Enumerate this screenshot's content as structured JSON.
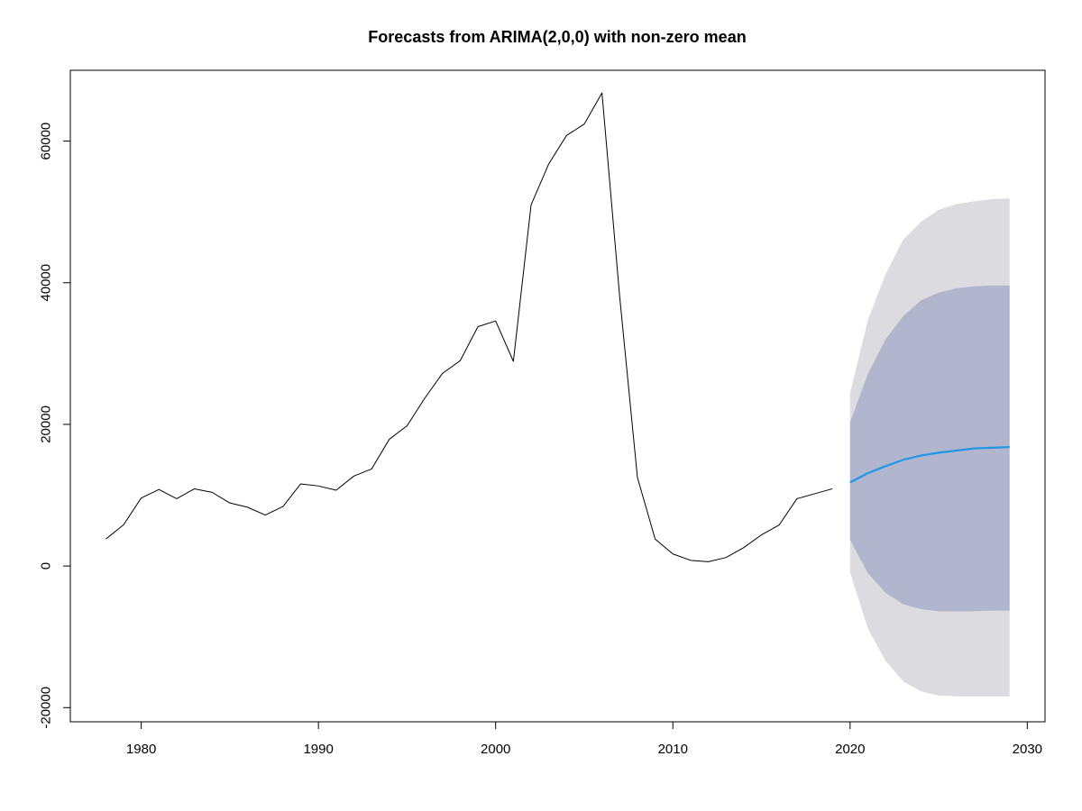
{
  "chart_data": {
    "type": "line",
    "title": "Forecasts from ARIMA(2,0,0) with non-zero mean",
    "xlabel": "",
    "ylabel": "",
    "xlim": [
      1976,
      2031
    ],
    "ylim": [
      -22000,
      70000
    ],
    "x_ticks": [
      1980,
      1990,
      2000,
      2010,
      2020,
      2030
    ],
    "y_ticks": [
      -20000,
      0,
      20000,
      40000,
      60000
    ],
    "x_tick_labels": [
      "1980",
      "1990",
      "2000",
      "2010",
      "2020",
      "2030"
    ],
    "y_tick_labels": [
      "-20000",
      "0",
      "20000",
      "40000",
      "60000"
    ],
    "grid": false,
    "colors": {
      "history": "#000000",
      "forecast": "#2297e6",
      "band95": "#dbdbe0",
      "band80": "#b1b5ce"
    },
    "history": {
      "x": [
        1978,
        1979,
        1980,
        1981,
        1982,
        1983,
        1984,
        1985,
        1986,
        1987,
        1988,
        1989,
        1990,
        1991,
        1992,
        1993,
        1994,
        1995,
        1996,
        1997,
        1998,
        1999,
        2000,
        2001,
        2002,
        2003,
        2004,
        2005,
        2006,
        2007,
        2008,
        2009,
        2010,
        2011,
        2012,
        2013,
        2014,
        2015,
        2016,
        2017,
        2018,
        2019
      ],
      "y": [
        3800,
        5800,
        9600,
        10800,
        9500,
        10900,
        10400,
        8900,
        8300,
        7200,
        8400,
        11600,
        11300,
        10700,
        12700,
        13700,
        17900,
        19800,
        23700,
        27200,
        29000,
        33800,
        34600,
        28900,
        51000,
        56800,
        60800,
        62400,
        66800,
        38000,
        12500,
        3800,
        1700,
        800,
        600,
        1200,
        2600,
        4400,
        5800,
        9500,
        10200,
        10900
      ]
    },
    "forecast": {
      "x": [
        2020,
        2021,
        2022,
        2023,
        2024,
        2025,
        2026,
        2027,
        2028,
        2029
      ],
      "mean": [
        11800,
        13100,
        14100,
        15000,
        15600,
        16000,
        16300,
        16600,
        16700,
        16800
      ],
      "lo80": [
        3700,
        -1000,
        -3800,
        -5400,
        -6100,
        -6400,
        -6400,
        -6400,
        -6300,
        -6300
      ],
      "hi80": [
        20300,
        27100,
        32000,
        35300,
        37500,
        38600,
        39200,
        39500,
        39600,
        39600
      ],
      "lo95": [
        -900,
        -8800,
        -13400,
        -16300,
        -17700,
        -18300,
        -18400,
        -18400,
        -18400,
        -18400
      ],
      "hi95": [
        24400,
        34700,
        41200,
        46100,
        48600,
        50300,
        51100,
        51500,
        51800,
        51900
      ]
    }
  }
}
